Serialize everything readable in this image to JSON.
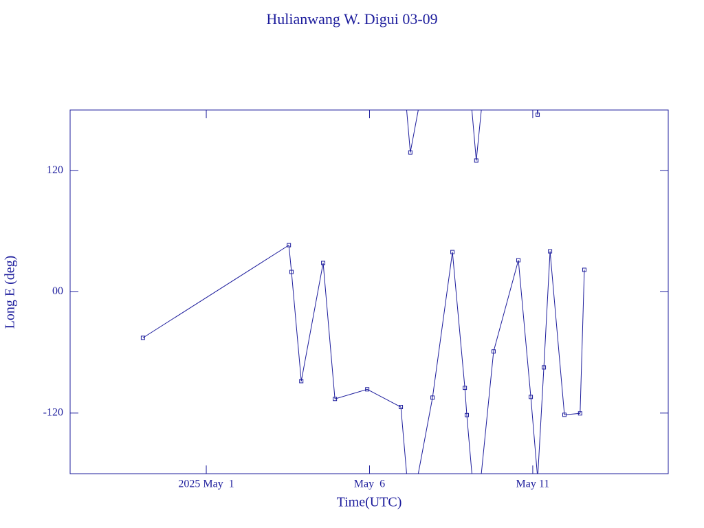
{
  "chart_data": {
    "type": "line",
    "title": "Hulianwang W. Digui 03-09",
    "x_label": "Time(UTC)",
    "y_label": "Long E (deg)",
    "x": [
      -0.94,
      3.53,
      3.61,
      3.91,
      4.58,
      4.94,
      5.93,
      6.96,
      7.25,
      7.93,
      8.54,
      8.92,
      8.98,
      9.27,
      9.8,
      10.56,
      10.94,
      11.15,
      11.34,
      11.53,
      11.97,
      12.45,
      12.58
    ],
    "series": [
      {
        "name": "Long E",
        "color": "#1c1c9c",
        "values": [
          -45.5,
          46.2,
          19.7,
          -88.4,
          28.6,
          -106,
          -96.5,
          -114,
          138,
          -104.7,
          39.4,
          -95,
          -122,
          130,
          -59,
          31.3,
          -104,
          175.4,
          -74.8,
          40.1,
          -121.7,
          -120.3,
          21.8
        ]
      }
    ],
    "xlim": [
      -3.17,
      15.15
    ],
    "xticks": [
      {
        "value": 1,
        "label": "2025 May  1"
      },
      {
        "value": 6,
        "label": "May  6"
      },
      {
        "value": 11,
        "label": "May 11"
      }
    ],
    "ylim": [
      -180,
      180
    ],
    "yticks": [
      -120,
      {
        "value": 0,
        "label": "00"
      },
      120
    ],
    "wrap": true
  }
}
